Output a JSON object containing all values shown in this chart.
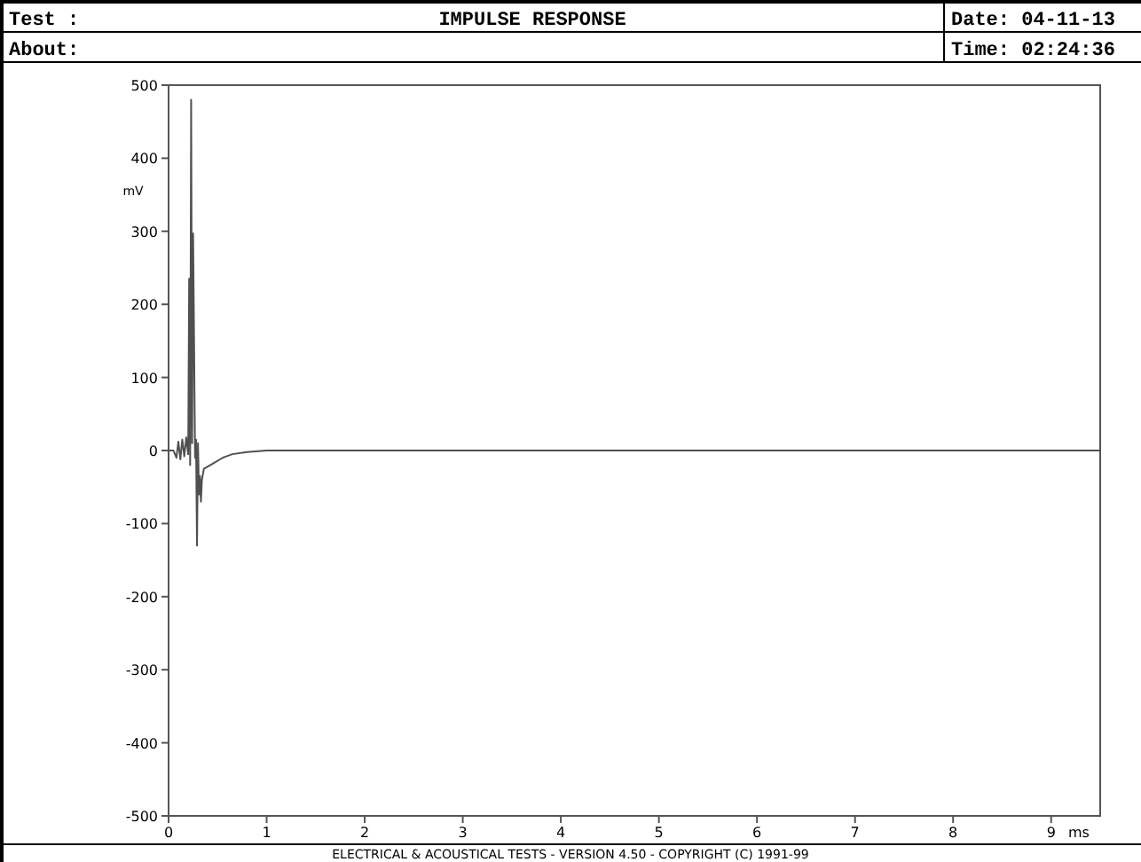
{
  "chart_data": {
    "type": "line",
    "title": "IMPULSE RESPONSE",
    "xlabel": "ms",
    "ylabel": "mV",
    "annotations": [
      "Test :",
      "About:",
      "Date: 04-11-13",
      "Time: 02:24:36",
      "ELECTRICAL & ACOUSTICAL TESTS  -  VERSION 4.50  -  COPYRIGHT (C) 1991-99"
    ],
    "x": [
      0,
      0.05,
      0.08,
      0.1,
      0.12,
      0.14,
      0.16,
      0.18,
      0.2,
      0.21,
      0.22,
      0.23,
      0.24,
      0.25,
      0.26,
      0.27,
      0.28,
      0.29,
      0.3,
      0.31,
      0.32,
      0.33,
      0.34,
      0.36,
      0.45,
      0.55,
      0.65,
      0.8,
      1.0,
      9.5
    ],
    "series": [
      {
        "color": "#505050",
        "values": [
          0,
          0,
          -10,
          12,
          -12,
          15,
          -8,
          18,
          -5,
          235,
          -20,
          480,
          10,
          297,
          150,
          -10,
          15,
          -130,
          10,
          -60,
          -35,
          -70,
          -40,
          -25,
          -18,
          -10,
          -5,
          -2,
          0,
          0
        ]
      }
    ],
    "xlim": [
      0,
      9.5
    ],
    "xticks": [
      0,
      1,
      2,
      3,
      4,
      5,
      6,
      7,
      8,
      9
    ],
    "ylim": [
      -500,
      500
    ],
    "yticks": [
      -500,
      -400,
      -300,
      -200,
      -100,
      0,
      100,
      200,
      300,
      400,
      500
    ],
    "grid": false,
    "line_style": "solid"
  }
}
